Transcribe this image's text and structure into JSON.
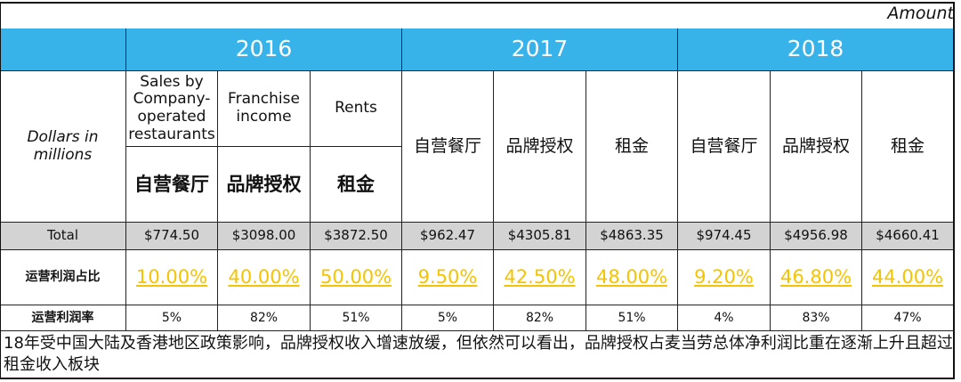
{
  "header": {
    "unit": "Amount"
  },
  "table": {
    "corner": "Dollars in millions",
    "english_labels": [
      "Sales by Company-operated restaurants",
      "Franchise income",
      "Rents"
    ],
    "groups": [
      {
        "year": "2016",
        "columns": [
          "自营餐厅",
          "品牌授权",
          "租金"
        ]
      },
      {
        "year": "2017",
        "columns": [
          "自营餐厅",
          "品牌授权",
          "租金"
        ]
      },
      {
        "year": "2018",
        "columns": [
          "自营餐厅",
          "品牌授权",
          "租金"
        ]
      }
    ],
    "rows": [
      {
        "label": "Total",
        "cells": [
          "$774.50",
          "$3098.00",
          "$3872.50",
          "$962.47",
          "$4305.81",
          "$4863.35",
          "$974.45",
          "$4956.98",
          "$4660.41"
        ]
      },
      {
        "label": "运营利润占比",
        "cells": [
          "10.00%",
          "40.00%",
          "50.00%",
          "9.50%",
          "42.50%",
          "48.00%",
          "9.20%",
          "46.80%",
          "44.00%"
        ]
      },
      {
        "label": "运营利润率",
        "cells": [
          "5%",
          "82%",
          "51%",
          "5%",
          "82%",
          "51%",
          "4%",
          "83%",
          "47%"
        ]
      }
    ]
  },
  "footer": {
    "note": "18年受中国大陆及香港地区政策影响，品牌授权收入增速放缓，但依然可以看出，品牌授权占麦当劳总体净利润比重在逐渐上升且超过租金收入板块"
  }
}
